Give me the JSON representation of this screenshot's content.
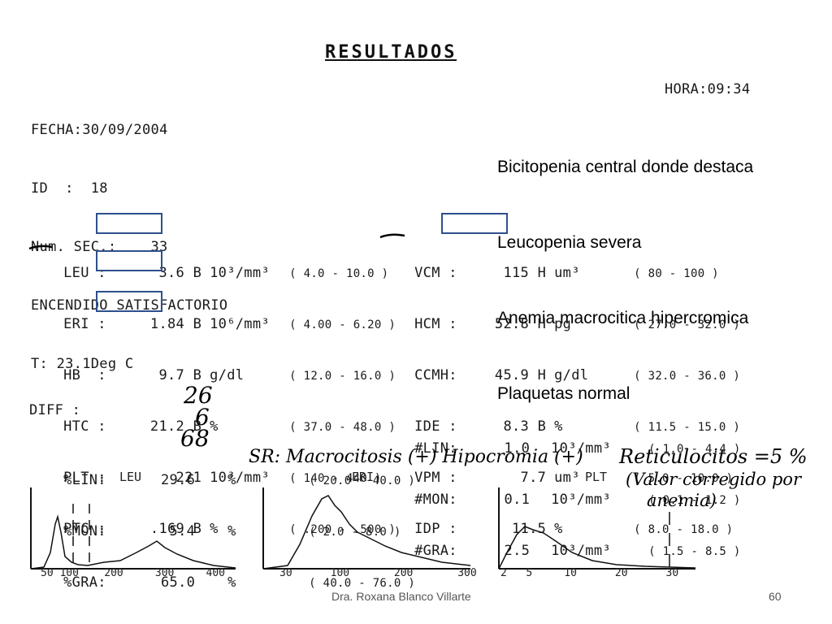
{
  "title": "RESULTADOS",
  "header": {
    "fecha": "FECHA:30/09/2004",
    "id": "ID  :  18",
    "num_sec": "Num. SEC.:    33",
    "encendido": "ENCENDIDO SATISFACTORIO",
    "temp": "T: 23.1Deg C",
    "hora": "HORA:09:34"
  },
  "note_lines": [
    "Bicitopenia central donde destaca",
    "Leucopenia severa",
    "Anemia macrocitica hipercromica",
    "Plaquetas normal"
  ],
  "left_params": [
    {
      "name": "LEU :",
      "value": "3.6 B",
      "unit": "10³/mm³",
      "range": "( 4.0 - 10.0 )"
    },
    {
      "name": "ERI :",
      "value": "1.84 B",
      "unit": "10⁶/mm³",
      "range": "( 4.00 - 6.20 )"
    },
    {
      "name": "HB  :",
      "value": "9.7 B",
      "unit": "g/dl",
      "range": "( 12.0 - 16.0 )"
    },
    {
      "name": "HTC :",
      "value": "21.2 B",
      "unit": "%",
      "range": "( 37.0 - 48.0 )"
    },
    {
      "name": "PLT :",
      "value": "221",
      "unit": "10³/mm³",
      "range": "( 140 - 440 )"
    },
    {
      "name": "PTC :",
      "value": ".169 B",
      "unit": "%",
      "range": "( .200 - .500 )"
    }
  ],
  "right_params": [
    {
      "name": "VCM :",
      "value": "115 H",
      "unit": "um³",
      "range": "( 80 - 100 )"
    },
    {
      "name": "HCM :",
      "value": "52.8 H",
      "unit": "pg",
      "range": "( 27.0 - 32.0 )"
    },
    {
      "name": "CCMH:",
      "value": "45.9 H",
      "unit": "g/dl",
      "range": "( 32.0 - 36.0 )"
    },
    {
      "name": "IDE :",
      "value": "8.3 B",
      "unit": "%",
      "range": "( 11.5 - 15.0 )"
    },
    {
      "name": "VPM :",
      "value": "7.7",
      "unit": "um³",
      "range": "( 5.0 - 10.0 )"
    },
    {
      "name": "IDP :",
      "value": "11.5",
      "unit": "%",
      "range": "( 8.0 - 18.0 )"
    }
  ],
  "diff": {
    "label": "DIFF :",
    "left": [
      {
        "name": "%LIN:",
        "value": "29.6",
        "unit": "%",
        "hand": "26",
        "range": "( 20.0 - 40.0 )"
      },
      {
        "name": "%MON:",
        "value": "5.4",
        "unit": "%",
        "hand": "6",
        "range": "( 2.0 - 8.0 )"
      },
      {
        "name": "%GRA:",
        "value": "65.0",
        "unit": "%",
        "hand": "68",
        "range": "( 40.0 - 76.0 )"
      }
    ],
    "right": [
      {
        "name": "#LIN:",
        "value": "1.0",
        "unit": "10³/mm³",
        "range": "( 1.0 - 4.4 )"
      },
      {
        "name": "#MON:",
        "value": "0.1",
        "unit": "10³/mm³",
        "range": "( 0.1 - 1.2 )"
      },
      {
        "name": "#GRA:",
        "value": "2.5",
        "unit": "10³/mm³",
        "range": "( 1.5 - 8.5 )"
      }
    ]
  },
  "handwritten": {
    "sr": "SR: Macrocitosis (+) Hipocromia (+)",
    "retic_line1": "Reticulocitos =5 %",
    "retic_line2": "(Valor corregido por",
    "retic_line3": "anemia)"
  },
  "histograms": {
    "leu": {
      "label": "LEU",
      "ticks": [
        "50",
        "100",
        "200",
        "300",
        "400"
      ]
    },
    "eri": {
      "label": "ERI",
      "ticks": [
        "30",
        "100",
        "200",
        "300"
      ]
    },
    "plt": {
      "label": "PLT",
      "ticks": [
        "2",
        "5",
        "10",
        "20",
        "30"
      ]
    }
  },
  "footer": {
    "author": "Dra. Roxana Blanco Villarte",
    "page": "60"
  },
  "colors": {
    "highlight_box": "#2e4f8c"
  }
}
